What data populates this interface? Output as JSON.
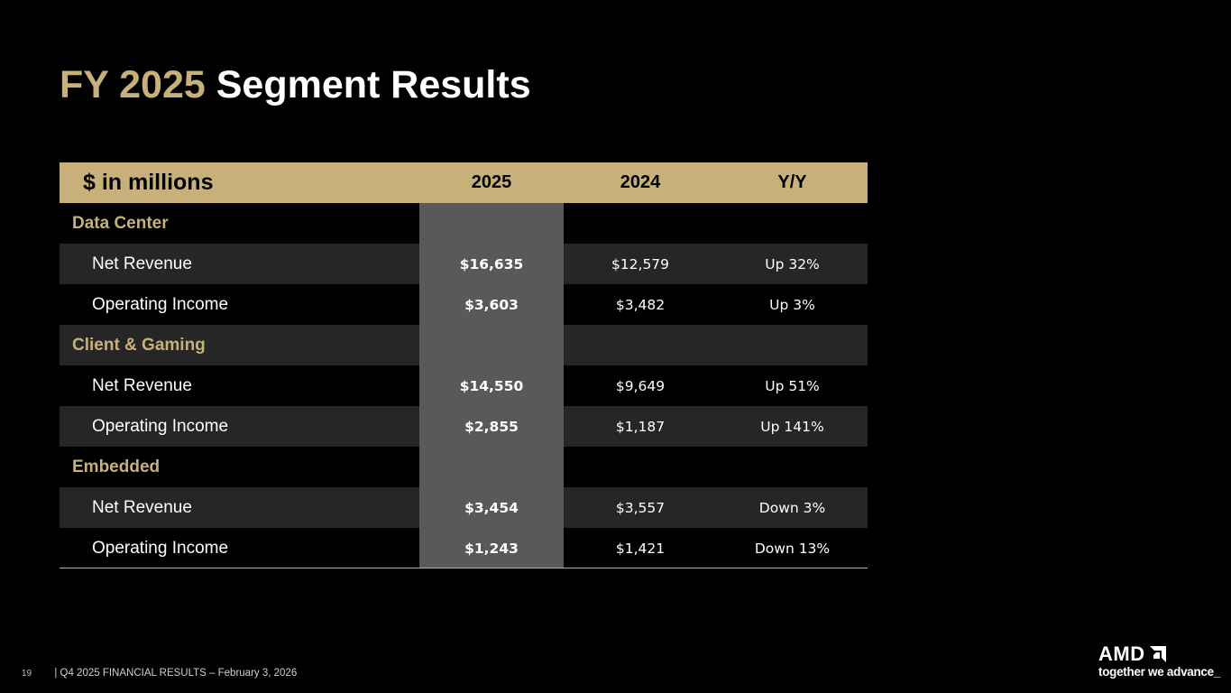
{
  "title": {
    "accent": "FY 2025",
    "main": "Segment Results"
  },
  "table": {
    "header": {
      "label": "$ in millions",
      "col1": "2025",
      "col2": "2024",
      "col3": "Y/Y"
    },
    "rows": [
      {
        "type": "section",
        "label": "Data Center",
        "v2025": "",
        "v2024": "",
        "yy": ""
      },
      {
        "type": "item",
        "label": "Net Revenue",
        "v2025": "$16,635",
        "v2024": "$12,579",
        "yy": "Up 32%"
      },
      {
        "type": "item",
        "label": "Operating Income",
        "v2025": "$3,603",
        "v2024": "$3,482",
        "yy": "Up 3%"
      },
      {
        "type": "section",
        "label": "Client & Gaming",
        "v2025": "",
        "v2024": "",
        "yy": ""
      },
      {
        "type": "item",
        "label": "Net Revenue",
        "v2025": "$14,550",
        "v2024": "$9,649",
        "yy": "Up 51%"
      },
      {
        "type": "item",
        "label": "Operating Income",
        "v2025": "$2,855",
        "v2024": "$1,187",
        "yy": "Up 141%"
      },
      {
        "type": "section",
        "label": "Embedded",
        "v2025": "",
        "v2024": "",
        "yy": ""
      },
      {
        "type": "item",
        "label": "Net Revenue",
        "v2025": "$3,454",
        "v2024": "$3,557",
        "yy": "Down 3%"
      },
      {
        "type": "item",
        "label": "Operating Income",
        "v2025": "$1,243",
        "v2024": "$1,421",
        "yy": "Down 13%"
      }
    ]
  },
  "footer": {
    "page_number": "19",
    "text": "|  Q4 2025 FINANCIAL RESULTS – February 3, 2026"
  },
  "logo": {
    "brand": "AMD",
    "tagline": "together we advance_"
  },
  "colors": {
    "accent": "#c7b07a",
    "highlight_column": "#595959",
    "shade_row": "#262626",
    "background": "#000000"
  }
}
